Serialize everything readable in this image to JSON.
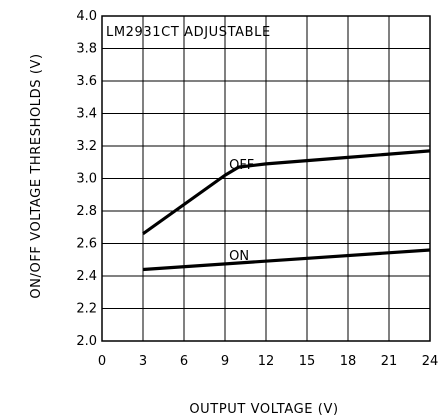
{
  "chart_data": {
    "type": "line",
    "title": "LM2931CT ADJUSTABLE",
    "xlabel": "OUTPUT VOLTAGE (V)",
    "ylabel": "ON/OFF VOLTAGE THRESHOLDS (V)",
    "xlim": [
      0,
      24
    ],
    "ylim": [
      2.0,
      4.0
    ],
    "x_ticks": [
      0,
      3,
      6,
      9,
      12,
      15,
      18,
      21,
      24
    ],
    "y_ticks": [
      2.0,
      2.2,
      2.4,
      2.6,
      2.8,
      3.0,
      3.2,
      3.4,
      3.6,
      3.8,
      4.0
    ],
    "grid": true,
    "series": [
      {
        "name": "OFF",
        "x": [
          3,
          6,
          9,
          10,
          12,
          15,
          18,
          21,
          24
        ],
        "y": [
          2.66,
          2.84,
          3.02,
          3.07,
          3.09,
          3.11,
          3.13,
          3.15,
          3.17
        ]
      },
      {
        "name": "ON",
        "x": [
          3,
          24
        ],
        "y": [
          2.44,
          2.56
        ]
      }
    ]
  }
}
